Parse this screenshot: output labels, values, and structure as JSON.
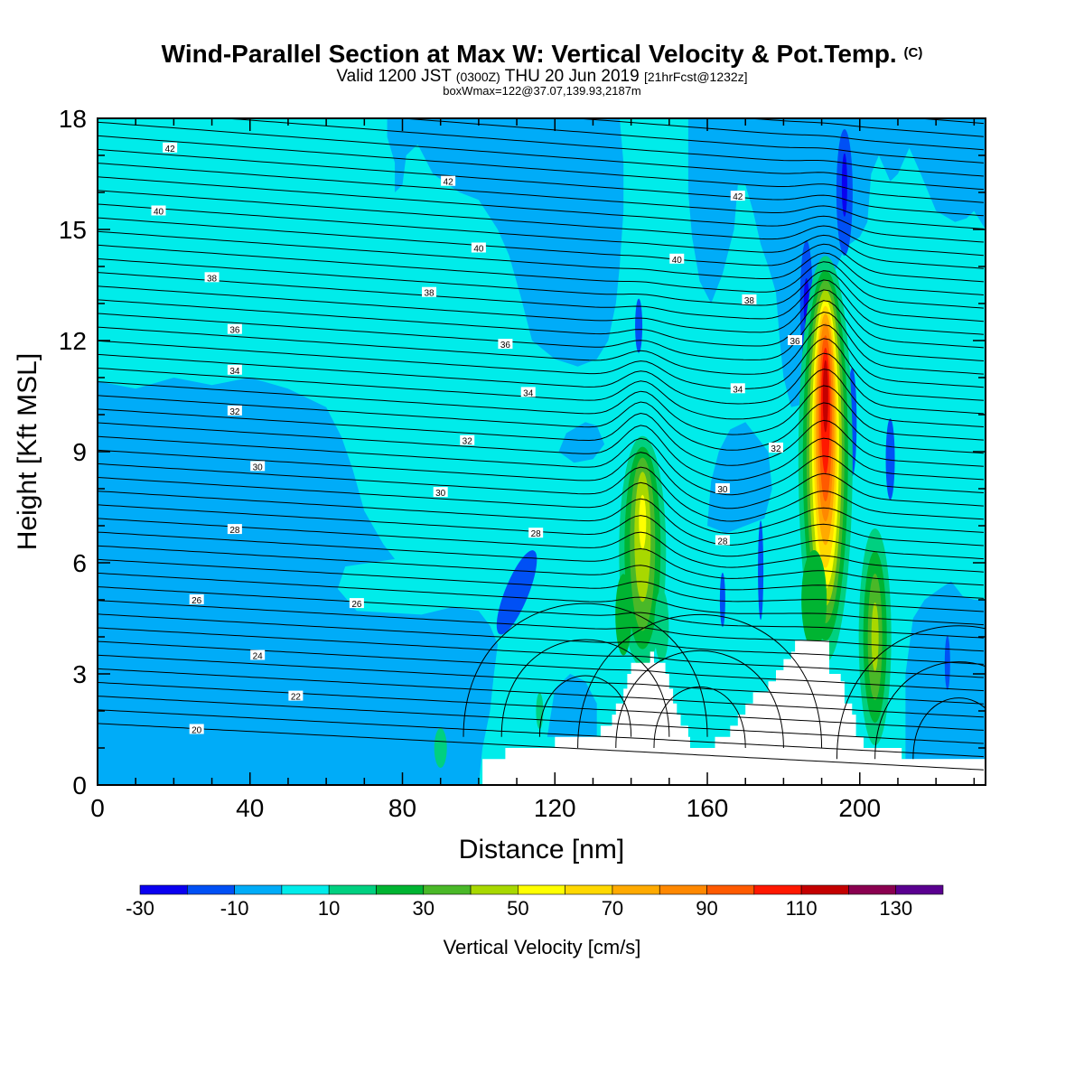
{
  "header": {
    "title": "Wind-Parallel Section at Max W: Vertical Velocity & Pot.Temp.",
    "title_mark": "(C)",
    "valid_prefix": "Valid 1200 JST",
    "valid_utc": "(0300Z)",
    "valid_date": "THU 20 Jun 2019",
    "fcst_note": "[21hrFcst@1232z]",
    "box_note": "boxWmax=122@37.07,139.93,2187m"
  },
  "chart_data": {
    "type": "heatmap",
    "xlabel": "Distance [nm]",
    "ylabel": "Height [Kft MSL]",
    "xlim": [
      0,
      233
    ],
    "ylim": [
      0,
      18
    ],
    "x_ticks": [
      0,
      40,
      80,
      120,
      160,
      200
    ],
    "y_ticks": [
      0,
      3,
      6,
      9,
      12,
      15,
      18
    ],
    "colorbar": {
      "label": "Vertical Velocity [cm/s]",
      "bins": [
        -30,
        -20,
        -10,
        0,
        10,
        20,
        30,
        40,
        50,
        60,
        70,
        80,
        90,
        100,
        110,
        120,
        130,
        140
      ],
      "tick_labels": [
        "-30",
        "-10",
        "10",
        "30",
        "50",
        "70",
        "90",
        "110",
        "130"
      ],
      "tick_values": [
        -30,
        -10,
        10,
        30,
        50,
        70,
        90,
        110,
        130
      ],
      "colors": [
        "#0a00f0",
        "#0050f5",
        "#00acf8",
        "#00ecea",
        "#00d080",
        "#00b432",
        "#4ab828",
        "#a8d800",
        "#ffff00",
        "#ffd800",
        "#ffaa00",
        "#ff8800",
        "#ff5a00",
        "#ff1800",
        "#c40000",
        "#8a0050",
        "#5a0090"
      ]
    },
    "vv_features": [
      {
        "kind": "updraft",
        "x": 143,
        "y_bottom": 3.6,
        "y_top": 9.3,
        "peak_cm_s": 55
      },
      {
        "kind": "updraft",
        "x": 191,
        "y_bottom": 4.0,
        "y_top": 13.7,
        "peak_cm_s": 122
      },
      {
        "kind": "updraft",
        "x": 204,
        "y_bottom": 1.5,
        "y_top": 7.2,
        "peak_cm_s": 40
      },
      {
        "kind": "downdraft",
        "x": 110,
        "y_bottom": 4.0,
        "y_top": 6.3,
        "peak_cm_s": -20
      },
      {
        "kind": "downdraft",
        "x": 187,
        "y_bottom": 11.0,
        "y_top": 15.0,
        "peak_cm_s": -25
      },
      {
        "kind": "downdraft",
        "x": 196,
        "y_bottom": 14.5,
        "y_top": 18.0,
        "peak_cm_s": -30
      }
    ],
    "theta_contours": [
      {
        "value": 20,
        "label_x": 26,
        "label_y": 1.5
      },
      {
        "value": 22,
        "label_x": 52,
        "label_y": 2.4
      },
      {
        "value": 24,
        "label_x": 42,
        "label_y": 3.5
      },
      {
        "value": 26,
        "label_x": 26,
        "label_y": 5.0
      },
      {
        "value": 26,
        "label_x": 68,
        "label_y": 4.9
      },
      {
        "value": 28,
        "label_x": 36,
        "label_y": 6.9
      },
      {
        "value": 28,
        "label_x": 115,
        "label_y": 6.8
      },
      {
        "value": 28,
        "label_x": 164,
        "label_y": 6.6
      },
      {
        "value": 30,
        "label_x": 42,
        "label_y": 8.6
      },
      {
        "value": 30,
        "label_x": 90,
        "label_y": 7.9
      },
      {
        "value": 30,
        "label_x": 164,
        "label_y": 8.0
      },
      {
        "value": 32,
        "label_x": 36,
        "label_y": 10.1
      },
      {
        "value": 32,
        "label_x": 97,
        "label_y": 9.3
      },
      {
        "value": 32,
        "label_x": 178,
        "label_y": 9.1
      },
      {
        "value": 34,
        "label_x": 36,
        "label_y": 11.2
      },
      {
        "value": 34,
        "label_x": 113,
        "label_y": 10.6
      },
      {
        "value": 34,
        "label_x": 168,
        "label_y": 10.7
      },
      {
        "value": 36,
        "label_x": 36,
        "label_y": 12.3
      },
      {
        "value": 36,
        "label_x": 107,
        "label_y": 11.9
      },
      {
        "value": 36,
        "label_x": 183,
        "label_y": 12.0
      },
      {
        "value": 38,
        "label_x": 30,
        "label_y": 13.7
      },
      {
        "value": 38,
        "label_x": 87,
        "label_y": 13.3
      },
      {
        "value": 38,
        "label_x": 171,
        "label_y": 13.1
      },
      {
        "value": 40,
        "label_x": 16,
        "label_y": 15.5
      },
      {
        "value": 40,
        "label_x": 100,
        "label_y": 14.5
      },
      {
        "value": 40,
        "label_x": 152,
        "label_y": 14.2
      },
      {
        "value": 42,
        "label_x": 19,
        "label_y": 17.2
      },
      {
        "value": 42,
        "label_x": 92,
        "label_y": 16.3
      },
      {
        "value": 42,
        "label_x": 168,
        "label_y": 15.9
      }
    ],
    "terrain": [
      [
        0,
        0.0
      ],
      [
        100,
        0.0
      ],
      [
        101,
        0.7
      ],
      [
        106,
        0.7
      ],
      [
        107,
        1.0
      ],
      [
        119,
        1.0
      ],
      [
        120,
        1.3
      ],
      [
        131,
        1.3
      ],
      [
        132,
        1.6
      ],
      [
        134,
        1.6
      ],
      [
        135,
        1.9
      ],
      [
        136,
        2.2
      ],
      [
        137,
        2.2
      ],
      [
        138,
        2.6
      ],
      [
        139,
        3.0
      ],
      [
        140,
        3.3
      ],
      [
        145,
        3.6
      ],
      [
        146,
        3.3
      ],
      [
        149,
        3.0
      ],
      [
        150,
        2.6
      ],
      [
        151,
        2.2
      ],
      [
        152,
        1.9
      ],
      [
        153,
        1.6
      ],
      [
        155,
        1.3
      ],
      [
        155.5,
        1.0
      ],
      [
        161,
        1.0
      ],
      [
        162,
        1.3
      ],
      [
        165,
        1.3
      ],
      [
        166,
        1.6
      ],
      [
        168,
        1.9
      ],
      [
        170,
        2.2
      ],
      [
        172,
        2.5
      ],
      [
        176,
        2.8
      ],
      [
        178,
        3.1
      ],
      [
        180,
        3.4
      ],
      [
        182,
        3.6
      ],
      [
        183,
        3.9
      ],
      [
        191,
        3.9
      ],
      [
        192,
        3.0
      ],
      [
        195,
        2.8
      ],
      [
        196,
        2.2
      ],
      [
        198,
        1.9
      ],
      [
        199,
        1.3
      ],
      [
        201,
        1.0
      ],
      [
        210,
        1.0
      ],
      [
        211,
        0.7
      ],
      [
        233,
        0.7
      ]
    ]
  }
}
